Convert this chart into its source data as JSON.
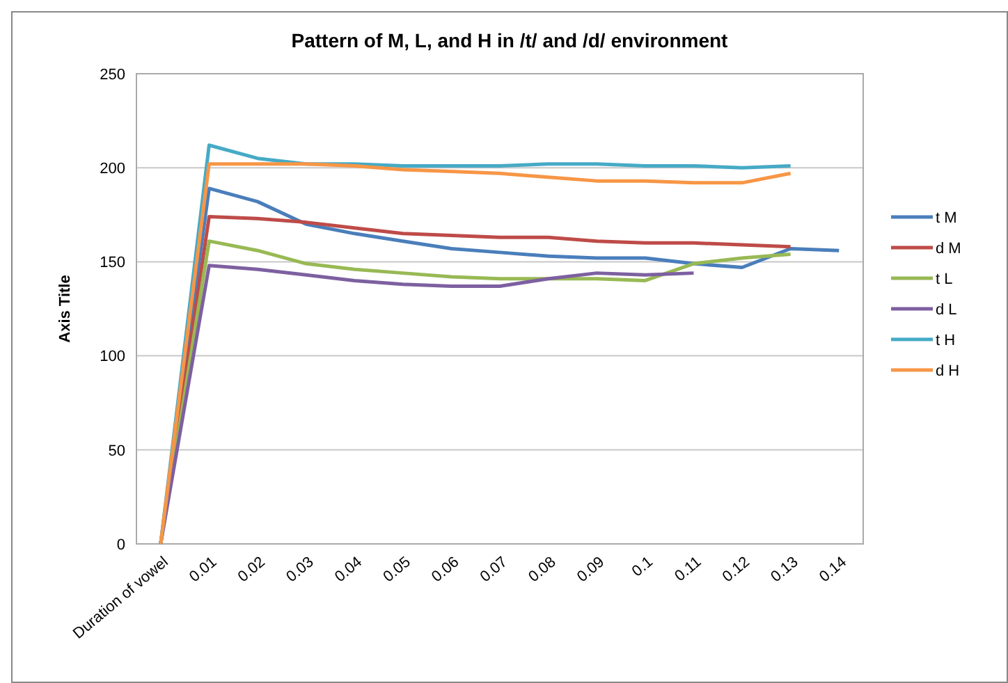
{
  "chart_data": {
    "type": "line",
    "title": "Pattern of M, L, and H in /t/ and /d/ environment",
    "ylabel": "Axis Title",
    "categories": [
      "Duration of vowel",
      "0.01",
      "0.02",
      "0.03",
      "0.04",
      "0.05",
      "0.06",
      "0.07",
      "0.08",
      "0.09",
      "0.1",
      "0.11",
      "0.12",
      "0.13",
      "0.14"
    ],
    "ylim": [
      0,
      250
    ],
    "yticks": [
      0,
      50,
      100,
      150,
      200,
      250
    ],
    "grid": "y",
    "legend": "right",
    "marker": "none",
    "line_style": "solid",
    "series": [
      {
        "name": "t M",
        "color": "#4a7ebb",
        "values": [
          0,
          189,
          182,
          170,
          165,
          161,
          157,
          155,
          153,
          152,
          152,
          149,
          147,
          157,
          156
        ]
      },
      {
        "name": "d M",
        "color": "#be4b48",
        "values": [
          0,
          174,
          173,
          171,
          168,
          165,
          164,
          163,
          163,
          161,
          160,
          160,
          159,
          158,
          null
        ]
      },
      {
        "name": "t L",
        "color": "#98b954",
        "values": [
          0,
          161,
          156,
          149,
          146,
          144,
          142,
          141,
          141,
          141,
          140,
          149,
          152,
          154,
          null
        ]
      },
      {
        "name": "d L",
        "color": "#7d60a0",
        "values": [
          0,
          148,
          146,
          143,
          140,
          138,
          137,
          137,
          141,
          144,
          143,
          144,
          null,
          null,
          null
        ]
      },
      {
        "name": "t H",
        "color": "#46aac5",
        "values": [
          0,
          212,
          205,
          202,
          202,
          201,
          201,
          201,
          202,
          202,
          201,
          201,
          200,
          201,
          null
        ]
      },
      {
        "name": "d H",
        "color": "#f79646",
        "values": [
          0,
          202,
          202,
          202,
          201,
          199,
          198,
          197,
          195,
          193,
          193,
          192,
          192,
          197,
          null
        ]
      }
    ]
  }
}
